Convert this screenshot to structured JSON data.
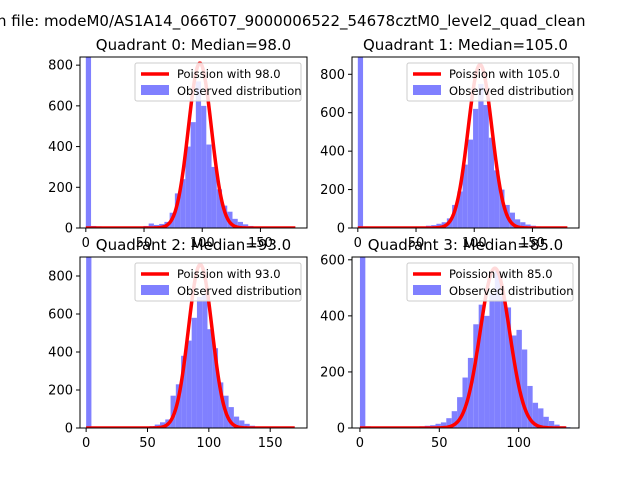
{
  "figure": {
    "suptitle": "n file: modeM0/AS1A14_066T07_9000006522_54678cztM0_level2_quad_clean"
  },
  "colors": {
    "hist_fill": "#8080ff",
    "poisson_line": "#ff0000",
    "axes": "#000000",
    "legend_border": "#cccccc"
  },
  "chart_data": [
    {
      "type": "bar",
      "title": "Quadrant 0: Median=98.0",
      "median": 98.0,
      "xlim": [
        -5,
        190
      ],
      "ylim": [
        0,
        840
      ],
      "xticks": [
        0,
        50,
        100,
        150
      ],
      "yticks": [
        0,
        200,
        400,
        600,
        800
      ],
      "legend": {
        "placement": "top-right",
        "entries": [
          "Poission with 98.0",
          "Observed distribution"
        ]
      },
      "histogram": {
        "bin_width": 4.5,
        "bins": [
          {
            "x": 0,
            "y": 850
          },
          {
            "x": 4.5,
            "y": 10
          },
          {
            "x": 9,
            "y": 8
          },
          {
            "x": 13.5,
            "y": 6
          },
          {
            "x": 18,
            "y": 5
          },
          {
            "x": 22.5,
            "y": 4
          },
          {
            "x": 27,
            "y": 4
          },
          {
            "x": 31.5,
            "y": 3
          },
          {
            "x": 36,
            "y": 4
          },
          {
            "x": 40.5,
            "y": 4
          },
          {
            "x": 45,
            "y": 6
          },
          {
            "x": 49.5,
            "y": 10
          },
          {
            "x": 54,
            "y": 22
          },
          {
            "x": 58.5,
            "y": 15
          },
          {
            "x": 63,
            "y": 20
          },
          {
            "x": 67.5,
            "y": 30
          },
          {
            "x": 72,
            "y": 75
          },
          {
            "x": 76.5,
            "y": 170
          },
          {
            "x": 81,
            "y": 240
          },
          {
            "x": 85.5,
            "y": 400
          },
          {
            "x": 90,
            "y": 520
          },
          {
            "x": 94.5,
            "y": 720
          },
          {
            "x": 99,
            "y": 600
          },
          {
            "x": 103.5,
            "y": 410
          },
          {
            "x": 108,
            "y": 300
          },
          {
            "x": 112.5,
            "y": 190
          },
          {
            "x": 117,
            "y": 110
          },
          {
            "x": 121.5,
            "y": 80
          },
          {
            "x": 126,
            "y": 45
          },
          {
            "x": 130.5,
            "y": 30
          },
          {
            "x": 135,
            "y": 18
          },
          {
            "x": 139.5,
            "y": 10
          },
          {
            "x": 144,
            "y": 6
          },
          {
            "x": 148.5,
            "y": 4
          },
          {
            "x": 153,
            "y": 3
          },
          {
            "x": 157.5,
            "y": 2
          },
          {
            "x": 162,
            "y": 2
          },
          {
            "x": 166.5,
            "y": 1
          },
          {
            "x": 171,
            "y": 1
          },
          {
            "x": 175.5,
            "y": 1
          }
        ]
      },
      "poisson": {
        "mean": 98.0,
        "peak": 810,
        "x_range": [
          0,
          180
        ]
      }
    },
    {
      "type": "bar",
      "title": "Quadrant 1: Median=105.0",
      "median": 105.0,
      "xlim": [
        -5,
        190
      ],
      "ylim": [
        0,
        890
      ],
      "xticks": [
        0,
        50,
        100,
        150
      ],
      "yticks": [
        0,
        200,
        400,
        600,
        800
      ],
      "legend": {
        "placement": "top-right",
        "entries": [
          "Poission with 105.0",
          "Observed distribution"
        ]
      },
      "histogram": {
        "bin_width": 4.5,
        "bins": [
          {
            "x": 0,
            "y": 900
          },
          {
            "x": 4.5,
            "y": 8
          },
          {
            "x": 9,
            "y": 6
          },
          {
            "x": 13.5,
            "y": 5
          },
          {
            "x": 18,
            "y": 4
          },
          {
            "x": 22.5,
            "y": 4
          },
          {
            "x": 27,
            "y": 3
          },
          {
            "x": 31.5,
            "y": 3
          },
          {
            "x": 36,
            "y": 3
          },
          {
            "x": 40.5,
            "y": 4
          },
          {
            "x": 45,
            "y": 4
          },
          {
            "x": 49.5,
            "y": 5
          },
          {
            "x": 54,
            "y": 8
          },
          {
            "x": 58.5,
            "y": 12
          },
          {
            "x": 63,
            "y": 15
          },
          {
            "x": 67.5,
            "y": 22
          },
          {
            "x": 72,
            "y": 30
          },
          {
            "x": 76.5,
            "y": 50
          },
          {
            "x": 81,
            "y": 120
          },
          {
            "x": 85.5,
            "y": 190
          },
          {
            "x": 90,
            "y": 330
          },
          {
            "x": 94.5,
            "y": 460
          },
          {
            "x": 99,
            "y": 620
          },
          {
            "x": 103.5,
            "y": 750
          },
          {
            "x": 108,
            "y": 640
          },
          {
            "x": 112.5,
            "y": 470
          },
          {
            "x": 117,
            "y": 300
          },
          {
            "x": 121.5,
            "y": 200
          },
          {
            "x": 126,
            "y": 120
          },
          {
            "x": 130.5,
            "y": 80
          },
          {
            "x": 135,
            "y": 45
          },
          {
            "x": 139.5,
            "y": 30
          },
          {
            "x": 144,
            "y": 18
          },
          {
            "x": 148.5,
            "y": 12
          },
          {
            "x": 153,
            "y": 8
          },
          {
            "x": 157.5,
            "y": 5
          },
          {
            "x": 162,
            "y": 3
          },
          {
            "x": 166.5,
            "y": 2
          },
          {
            "x": 171,
            "y": 1
          },
          {
            "x": 175.5,
            "y": 1
          }
        ]
      },
      "poisson": {
        "mean": 105.0,
        "peak": 850,
        "x_range": [
          0,
          180
        ]
      }
    },
    {
      "type": "bar",
      "title": "Quadrant 2: Median=93.0",
      "median": 93.0,
      "xlim": [
        -5,
        180
      ],
      "ylim": [
        0,
        900
      ],
      "xticks": [
        0,
        50,
        100,
        150
      ],
      "yticks": [
        0,
        200,
        400,
        600,
        800
      ],
      "legend": {
        "placement": "top-right",
        "entries": [
          "Poission with 93.0",
          "Observed distribution"
        ]
      },
      "histogram": {
        "bin_width": 4.3,
        "bins": [
          {
            "x": 0,
            "y": 910
          },
          {
            "x": 4.3,
            "y": 8
          },
          {
            "x": 8.6,
            "y": 6
          },
          {
            "x": 12.9,
            "y": 5
          },
          {
            "x": 17.2,
            "y": 4
          },
          {
            "x": 21.5,
            "y": 4
          },
          {
            "x": 25.8,
            "y": 3
          },
          {
            "x": 30.1,
            "y": 3
          },
          {
            "x": 34.4,
            "y": 3
          },
          {
            "x": 38.7,
            "y": 4
          },
          {
            "x": 43,
            "y": 5
          },
          {
            "x": 47.3,
            "y": 6
          },
          {
            "x": 51.6,
            "y": 10
          },
          {
            "x": 55.9,
            "y": 18
          },
          {
            "x": 60.2,
            "y": 30
          },
          {
            "x": 64.5,
            "y": 45
          },
          {
            "x": 68.8,
            "y": 170
          },
          {
            "x": 73.1,
            "y": 230
          },
          {
            "x": 77.4,
            "y": 380
          },
          {
            "x": 81.7,
            "y": 460
          },
          {
            "x": 86,
            "y": 580
          },
          {
            "x": 90.3,
            "y": 690
          },
          {
            "x": 94.6,
            "y": 700
          },
          {
            "x": 98.9,
            "y": 520
          },
          {
            "x": 103.2,
            "y": 420
          },
          {
            "x": 107.5,
            "y": 240
          },
          {
            "x": 111.8,
            "y": 170
          },
          {
            "x": 116.1,
            "y": 110
          },
          {
            "x": 120.4,
            "y": 60
          },
          {
            "x": 124.7,
            "y": 40
          },
          {
            "x": 129,
            "y": 22
          },
          {
            "x": 133.3,
            "y": 12
          },
          {
            "x": 137.6,
            "y": 8
          },
          {
            "x": 141.9,
            "y": 5
          },
          {
            "x": 146.2,
            "y": 3
          },
          {
            "x": 150.5,
            "y": 2
          },
          {
            "x": 154.8,
            "y": 2
          },
          {
            "x": 159.1,
            "y": 1
          },
          {
            "x": 163.4,
            "y": 1
          },
          {
            "x": 167.7,
            "y": 1
          }
        ]
      },
      "poisson": {
        "mean": 93.0,
        "peak": 860,
        "x_range": [
          0,
          170
        ]
      }
    },
    {
      "type": "bar",
      "title": "Quadrant 3: Median=85.0",
      "median": 85.0,
      "xlim": [
        -5,
        138
      ],
      "ylim": [
        0,
        610
      ],
      "xticks": [
        0,
        50,
        100
      ],
      "yticks": [
        0,
        200,
        400,
        600
      ],
      "legend": {
        "placement": "top-right",
        "entries": [
          "Poission with 85.0",
          "Observed distribution"
        ]
      },
      "histogram": {
        "bin_width": 3.4,
        "bins": [
          {
            "x": 0,
            "y": 620
          },
          {
            "x": 3.4,
            "y": 6
          },
          {
            "x": 6.8,
            "y": 5
          },
          {
            "x": 10.2,
            "y": 4
          },
          {
            "x": 13.6,
            "y": 3
          },
          {
            "x": 17,
            "y": 3
          },
          {
            "x": 20.4,
            "y": 3
          },
          {
            "x": 23.8,
            "y": 3
          },
          {
            "x": 27.2,
            "y": 3
          },
          {
            "x": 30.6,
            "y": 4
          },
          {
            "x": 34,
            "y": 5
          },
          {
            "x": 37.4,
            "y": 6
          },
          {
            "x": 40.8,
            "y": 8
          },
          {
            "x": 44.2,
            "y": 10
          },
          {
            "x": 47.6,
            "y": 15
          },
          {
            "x": 51,
            "y": 20
          },
          {
            "x": 54.4,
            "y": 35
          },
          {
            "x": 57.8,
            "y": 60
          },
          {
            "x": 61.2,
            "y": 110
          },
          {
            "x": 64.6,
            "y": 180
          },
          {
            "x": 68,
            "y": 250
          },
          {
            "x": 71.4,
            "y": 370
          },
          {
            "x": 74.8,
            "y": 440
          },
          {
            "x": 78.2,
            "y": 400
          },
          {
            "x": 81.6,
            "y": 480
          },
          {
            "x": 85,
            "y": 560
          },
          {
            "x": 88.4,
            "y": 470
          },
          {
            "x": 91.8,
            "y": 430
          },
          {
            "x": 95.2,
            "y": 330
          },
          {
            "x": 98.6,
            "y": 350
          },
          {
            "x": 102,
            "y": 280
          },
          {
            "x": 105.4,
            "y": 150
          },
          {
            "x": 108.8,
            "y": 90
          },
          {
            "x": 112.2,
            "y": 70
          },
          {
            "x": 115.6,
            "y": 40
          },
          {
            "x": 119,
            "y": 25
          },
          {
            "x": 122.4,
            "y": 12
          },
          {
            "x": 125.8,
            "y": 6
          },
          {
            "x": 129.2,
            "y": 3
          }
        ]
      },
      "poisson": {
        "mean": 85.0,
        "peak": 570,
        "x_range": [
          0,
          130
        ]
      }
    }
  ]
}
